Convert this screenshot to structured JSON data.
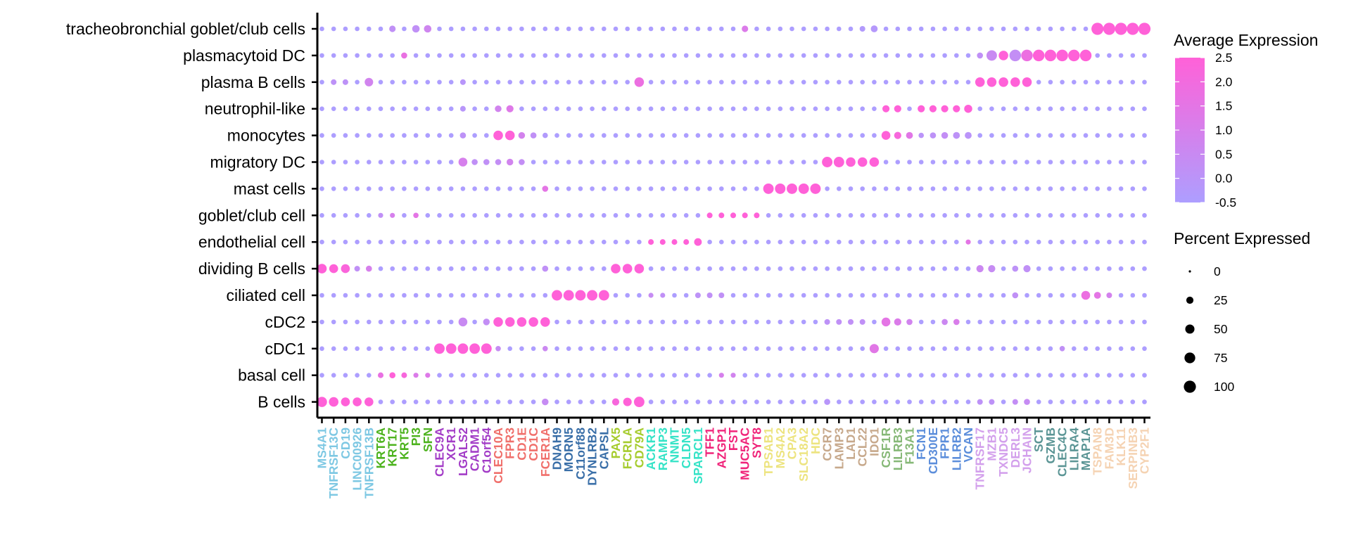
{
  "chart_data": {
    "type": "dotplot",
    "genes": [
      "MS4A1",
      "TNFRSF13C",
      "CD19",
      "LINC00926",
      "TNFRSF13B",
      "KRT6A",
      "KRT17",
      "KRT5",
      "PI3",
      "SFN",
      "CLEC9A",
      "XCR1",
      "LGALS2",
      "CADM1",
      "C1orf54",
      "CLEC10A",
      "FPR3",
      "CD1E",
      "CD1C",
      "FCER1A",
      "DNAH9",
      "MORN5",
      "C11orf88",
      "DYNLRB2",
      "CAPSL",
      "PAX5",
      "FCRLA",
      "CD79A",
      "ACKR1",
      "RAMP3",
      "NNMT",
      "CLDN5",
      "SPARCL1",
      "TFF1",
      "AZGP1",
      "FST",
      "MUC5AC",
      "SYT8",
      "TPSAB1",
      "MS4A2",
      "CPA3",
      "SLC18A2",
      "HDC",
      "CCR7",
      "LAMP3",
      "LAD1",
      "CCL22",
      "IDO1",
      "CSF1R",
      "LILRB3",
      "F13A1",
      "FCN1",
      "CD300E",
      "FPR1",
      "LILRB2",
      "VCAN",
      "TNFRSF17",
      "MZB1",
      "TXNDC5",
      "DERL3",
      "JCHAIN",
      "SCT",
      "GZMB",
      "CLEC4C",
      "LILRA4",
      "MAP1A",
      "TSPAN8",
      "FAM3D",
      "KLK11",
      "SERPINB3",
      "CYP2F1"
    ],
    "gene_colors": [
      "#7EC8E3",
      "#7EC8E3",
      "#7EC8E3",
      "#7EC8E3",
      "#7EC8E3",
      "#4DB31E",
      "#4DB31E",
      "#4DB31E",
      "#4DB31E",
      "#4DB31E",
      "#A33DC7",
      "#A33DC7",
      "#A33DC7",
      "#A33DC7",
      "#A33DC7",
      "#F0706C",
      "#F0706C",
      "#F0706C",
      "#F0706C",
      "#F0706C",
      "#3A6FA8",
      "#3A6FA8",
      "#3A6FA8",
      "#3A6FA8",
      "#3A6FA8",
      "#A6CC2E",
      "#A6CC2E",
      "#A6CC2E",
      "#36E3C7",
      "#36E3C7",
      "#36E3C7",
      "#36E3C7",
      "#36E3C7",
      "#F0247A",
      "#F0247A",
      "#F0247A",
      "#F0247A",
      "#F0247A",
      "#EDE480",
      "#EDE480",
      "#EDE480",
      "#EDE480",
      "#EDE480",
      "#C7A98C",
      "#C7A98C",
      "#C7A98C",
      "#C7A98C",
      "#C7A98C",
      "#86B877",
      "#86B877",
      "#86B877",
      "#5C8EDB",
      "#5C8EDB",
      "#5C8EDB",
      "#5C8EDB",
      "#5C8EDB",
      "#D3A0EC",
      "#D3A0EC",
      "#D3A0EC",
      "#D3A0EC",
      "#D3A0EC",
      "#5B9595",
      "#5B9595",
      "#5B9595",
      "#5B9595",
      "#5B9595",
      "#F5D3B3",
      "#F5D3B3",
      "#F5D3B3",
      "#F5D3B3",
      "#F5D3B3"
    ],
    "cell_types": [
      "tracheobronchial goblet/club cells",
      "plasmacytoid DC",
      "plasma B cells",
      "neutrophil-like",
      "monocytes",
      "migratory DC",
      "mast cells",
      "goblet/club cell",
      "endothelial cell",
      "dividing B cells",
      "ciliated cell",
      "cDC2",
      "cDC1",
      "basal cell",
      "B cells"
    ],
    "color_legend": {
      "title": "Average Expression",
      "ticks": [
        2.5,
        2.0,
        1.5,
        1.0,
        0.5,
        0.0,
        -0.5
      ],
      "tick_labels": [
        "2.5",
        "2.0",
        "1.5",
        "1.0",
        "0.5",
        "0.0",
        "-0.5"
      ],
      "low_color": "#AD9EFF",
      "high_color": "#FF61D8",
      "range": [
        -0.5,
        2.5
      ]
    },
    "size_legend": {
      "title": "Percent Expressed",
      "values": [
        0,
        25,
        50,
        75,
        100
      ],
      "labels": [
        "0",
        "25",
        "50",
        "75",
        "100"
      ]
    },
    "default_dot": {
      "pct": 6,
      "exp": -0.5
    },
    "points": {
      "tracheobronchial goblet/club cells": {
        "PI3": [
          28,
          0.2
        ],
        "SFN": [
          28,
          0.7
        ],
        "KRT17": [
          18,
          0.2
        ],
        "MUC5AC": [
          18,
          1.2
        ],
        "IDO1": [
          22,
          -0.2
        ],
        "CCL22": [
          12,
          -0.3
        ],
        "FAM3D": [
          100,
          2.5
        ],
        "TSPAN8": [
          100,
          2.5
        ],
        "KLK11": [
          100,
          2.5
        ],
        "SERPINB3": [
          100,
          2.5
        ],
        "CYP2F1": [
          100,
          2.5
        ]
      },
      "plasmacytoid DC": {
        "KRT5": [
          15,
          1.7
        ],
        "MZB1": [
          70,
          0.5
        ],
        "TNFRSF17": [
          15,
          0.2
        ],
        "TXNDC5": [
          55,
          2.5
        ],
        "DERL3": [
          90,
          0.3
        ],
        "JCHAIN": [
          90,
          1.8
        ],
        "SCT": [
          90,
          2.5
        ],
        "GZMB": [
          90,
          2.5
        ],
        "CLEC4C": [
          90,
          2.5
        ],
        "LILRA4": [
          90,
          2.5
        ],
        "MAP1A": [
          90,
          2.5
        ]
      },
      "plasma B cells": {
        "TNFRSF13C": [
          12,
          0.1
        ],
        "CD19": [
          12,
          0.1
        ],
        "TNFRSF13B": [
          40,
          0.8
        ],
        "LGALS2": [
          12,
          -0.1
        ],
        "CD79A": [
          55,
          1.8
        ],
        "TNFRSF17": [
          55,
          2.5
        ],
        "MZB1": [
          55,
          2.5
        ],
        "TXNDC5": [
          55,
          2.5
        ],
        "DERL3": [
          55,
          2.5
        ],
        "JCHAIN": [
          55,
          2.5
        ]
      },
      "neutrophil-like": {
        "LGALS2": [
          12,
          -0.1
        ],
        "CLEC10A": [
          20,
          0.8
        ],
        "FPR3": [
          25,
          1.3
        ],
        "CSF1R": [
          25,
          2.5
        ],
        "LILRB3": [
          25,
          2.5
        ],
        "FCN1": [
          25,
          2.5
        ],
        "CD300E": [
          25,
          2.5
        ],
        "FPR1": [
          25,
          2.5
        ],
        "LILRB2": [
          25,
          2.5
        ],
        "VCAN": [
          35,
          2.5
        ]
      },
      "monocytes": {
        "LGALS2": [
          15,
          0.1
        ],
        "CLEC10A": [
          55,
          2.5
        ],
        "FPR3": [
          55,
          2.5
        ],
        "CD1E": [
          20,
          0.9
        ],
        "CD1C": [
          15,
          0.2
        ],
        "FCER1A": [
          10,
          -0.3
        ],
        "CSF1R": [
          45,
          2.5
        ],
        "LILRB3": [
          25,
          2.2
        ],
        "F13A1": [
          22,
          1.4
        ],
        "FCN1": [
          10,
          0.0
        ],
        "CD300E": [
          15,
          0.1
        ],
        "FPR1": [
          20,
          0.3
        ],
        "LILRB2": [
          22,
          0.1
        ],
        "VCAN": [
          22,
          0.0
        ]
      },
      "migratory DC": {
        "LGALS2": [
          45,
          1.0
        ],
        "CADM1": [
          15,
          0.2
        ],
        "C1orf54": [
          15,
          0.2
        ],
        "CLEC10A": [
          15,
          0.3
        ],
        "FPR3": [
          20,
          0.8
        ],
        "CD1E": [
          15,
          0.3
        ],
        "CCR7": [
          70,
          2.5
        ],
        "LAMP3": [
          70,
          2.5
        ],
        "LAD1": [
          55,
          2.5
        ],
        "CCL22": [
          55,
          2.5
        ],
        "IDO1": [
          55,
          2.5
        ]
      },
      "mast cells": {
        "FCER1A": [
          15,
          1.5
        ],
        "TPSAB1": [
          70,
          2.5
        ],
        "MS4A2": [
          70,
          2.5
        ],
        "CPA3": [
          70,
          2.5
        ],
        "SLC18A2": [
          70,
          2.5
        ],
        "HDC": [
          70,
          2.5
        ]
      },
      "goblet/club cell": {
        "KRT17": [
          8,
          1.0
        ],
        "PI3": [
          10,
          1.5
        ],
        "KRT6A": [
          8,
          0.2
        ],
        "TFF1": [
          12,
          2.5
        ],
        "AZGP1": [
          12,
          2.5
        ],
        "FST": [
          12,
          2.5
        ],
        "MUC5AC": [
          12,
          2.5
        ],
        "SYT8": [
          12,
          2.5
        ]
      },
      "endothelial cell": {
        "ACKR1": [
          12,
          2.5
        ],
        "RAMP3": [
          12,
          2.5
        ],
        "NNMT": [
          12,
          2.5
        ],
        "CLDN5": [
          12,
          2.5
        ],
        "SPARCL1": [
          30,
          2.5
        ],
        "VCAN": [
          8,
          1.5
        ]
      },
      "dividing B cells": {
        "MS4A1": [
          55,
          2.5
        ],
        "TNFRSF13C": [
          45,
          2.5
        ],
        "CD19": [
          45,
          2.3
        ],
        "LINC00926": [
          12,
          0.2
        ],
        "TNFRSF13B": [
          15,
          1.0
        ],
        "FCER1A": [
          15,
          0.2
        ],
        "PAX5": [
          55,
          2.5
        ],
        "FCRLA": [
          55,
          2.5
        ],
        "CD79A": [
          55,
          2.5
        ],
        "TNFRSF17": [
          25,
          0.6
        ],
        "MZB1": [
          25,
          0.4
        ],
        "DERL3": [
          15,
          0.1
        ],
        "JCHAIN": [
          25,
          0.2
        ]
      },
      "ciliated cell": {
        "DNAH9": [
          70,
          2.5
        ],
        "MORN5": [
          70,
          2.5
        ],
        "C11orf88": [
          70,
          2.5
        ],
        "DYNLRB2": [
          70,
          2.5
        ],
        "CAPSL": [
          70,
          2.5
        ],
        "ACKR1": [
          8,
          0.4
        ],
        "RAMP3": [
          8,
          0.2
        ],
        "SPARCL1": [
          12,
          0.1
        ],
        "TFF1": [
          12,
          0.2
        ],
        "AZGP1": [
          12,
          0.2
        ],
        "DERL3": [
          15,
          0.2
        ],
        "TSPAN8": [
          22,
          1.5
        ],
        "MAP1A": [
          45,
          1.8
        ],
        "FAM3D": [
          12,
          0.9
        ]
      },
      "cDC2": {
        "LGALS2": [
          45,
          0.5
        ],
        "C1orf54": [
          20,
          0.3
        ],
        "CLEC10A": [
          55,
          2.5
        ],
        "FPR3": [
          55,
          2.5
        ],
        "CD1E": [
          55,
          2.5
        ],
        "CD1C": [
          55,
          2.5
        ],
        "FCER1A": [
          55,
          2.5
        ],
        "CCR7": [
          12,
          0.1
        ],
        "LAMP3": [
          12,
          0.2
        ],
        "LAD1": [
          12,
          0.2
        ],
        "CCL22": [
          12,
          0.2
        ],
        "CSF1R": [
          45,
          1.5
        ],
        "LILRB3": [
          25,
          1.2
        ],
        "F13A1": [
          15,
          0.8
        ],
        "FPR1": [
          15,
          0.6
        ],
        "LILRB2": [
          15,
          1.1
        ]
      },
      "cDC1": {
        "CLEC9A": [
          70,
          2.5
        ],
        "XCR1": [
          70,
          2.5
        ],
        "LGALS2": [
          70,
          2.5
        ],
        "CADM1": [
          70,
          2.5
        ],
        "C1orf54": [
          70,
          2.5
        ],
        "CLEC10A": [
          10,
          0.4
        ],
        "FCER1A": [
          10,
          0.6
        ],
        "IDO1": [
          50,
          1.4
        ],
        "CLEC4C": [
          10,
          0.2
        ]
      },
      "basal cell": {
        "KRT6A": [
          12,
          1.7
        ],
        "KRT17": [
          15,
          2.5
        ],
        "KRT5": [
          12,
          2.2
        ],
        "PI3": [
          8,
          1.2
        ],
        "SFN": [
          8,
          1.3
        ],
        "AZGP1": [
          8,
          1.0
        ],
        "FST": [
          8,
          0.8
        ]
      },
      "B cells": {
        "MS4A1": [
          65,
          2.5
        ],
        "TNFRSF13C": [
          55,
          2.5
        ],
        "CD19": [
          45,
          2.5
        ],
        "LINC00926": [
          45,
          2.5
        ],
        "TNFRSF13B": [
          45,
          2.5
        ],
        "FCER1A": [
          20,
          0.4
        ],
        "PAX5": [
          25,
          2.2
        ],
        "FCRLA": [
          40,
          2.5
        ],
        "CD79A": [
          70,
          2.5
        ],
        "CCR7": [
          15,
          -0.1
        ],
        "TNFRSF17": [
          12,
          0.1
        ],
        "MZB1": [
          12,
          0.1
        ],
        "DERL3": [
          12,
          0.3
        ],
        "JCHAIN": [
          15,
          0.4
        ]
      }
    }
  }
}
